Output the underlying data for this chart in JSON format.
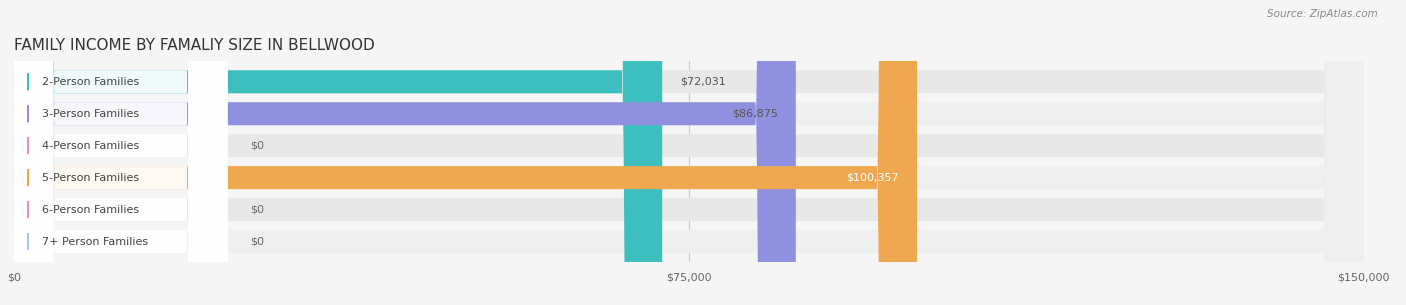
{
  "title": "FAMILY INCOME BY FAMALIY SIZE IN BELLWOOD",
  "source": "Source: ZipAtlas.com",
  "categories": [
    "2-Person Families",
    "3-Person Families",
    "4-Person Families",
    "5-Person Families",
    "6-Person Families",
    "7+ Person Families"
  ],
  "values": [
    72031,
    86875,
    0,
    100357,
    0,
    0
  ],
  "bar_colors": [
    "#3dbfbf",
    "#9090e0",
    "#f090b0",
    "#f0a850",
    "#f090b0",
    "#a0c8f0"
  ],
  "value_labels": [
    "$72,031",
    "$86,875",
    "$0",
    "$100,357",
    "$0",
    "$0"
  ],
  "value_label_colors": [
    "#555555",
    "#555555",
    "#555555",
    "#ffffff",
    "#555555",
    "#555555"
  ],
  "xlim": [
    0,
    150000
  ],
  "xtick_values": [
    0,
    75000,
    150000
  ],
  "xtick_labels": [
    "$0",
    "$75,000",
    "$150,000"
  ],
  "bg_color": "#f5f5f5",
  "title_fontsize": 11,
  "label_fontsize": 8,
  "value_fontsize": 8,
  "tick_fontsize": 8
}
